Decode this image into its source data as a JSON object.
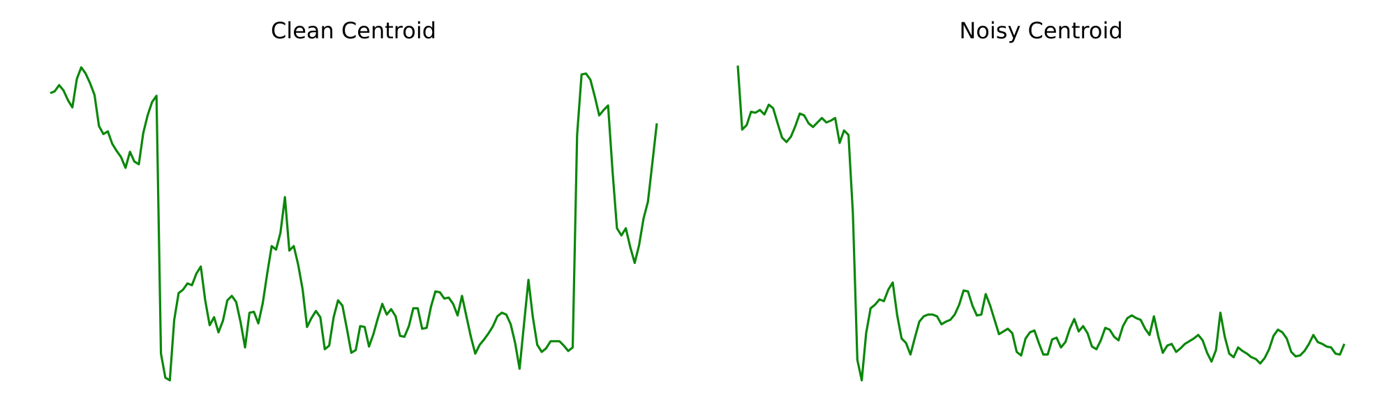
{
  "chart_data": [
    {
      "type": "line",
      "title": "Clean Centroid",
      "color": "#0a870a",
      "ylim": [
        0,
        380
      ],
      "values": [
        345,
        347,
        354,
        348,
        337,
        329,
        361,
        374,
        367,
        356,
        343,
        308,
        299,
        302,
        288,
        280,
        273,
        261,
        279,
        268,
        265,
        300,
        320,
        335,
        342,
        52,
        25,
        22,
        90,
        120,
        124,
        131,
        129,
        142,
        150,
        112,
        84,
        93,
        76,
        89,
        112,
        117,
        110,
        87,
        59,
        98,
        99,
        86,
        109,
        142,
        173,
        169,
        188,
        228,
        168,
        173,
        152,
        124,
        82,
        92,
        100,
        93,
        57,
        61,
        93,
        112,
        106,
        80,
        53,
        56,
        83,
        82,
        60,
        74,
        92,
        108,
        96,
        102,
        94,
        72,
        71,
        83,
        103,
        103,
        80,
        81,
        105,
        122,
        121,
        114,
        115,
        108,
        95,
        117,
        94,
        71,
        52,
        62,
        68,
        75,
        83,
        94,
        98,
        96,
        85,
        64,
        35,
        85,
        135,
        93,
        62,
        54,
        58,
        66,
        66,
        66,
        61,
        55,
        59,
        298,
        366,
        367,
        360,
        341,
        320,
        326,
        331,
        257,
        193,
        185,
        193,
        172,
        154,
        174,
        204,
        223,
        267,
        311
      ]
    },
    {
      "type": "line",
      "title": "Noisy Centroid",
      "color": "#0a870a",
      "ylim": [
        0,
        380
      ],
      "values": [
        376,
        304,
        309,
        324,
        323,
        326,
        321,
        332,
        328,
        311,
        295,
        290,
        296,
        308,
        322,
        320,
        311,
        307,
        312,
        317,
        312,
        314,
        317,
        289,
        303,
        298,
        210,
        45,
        22,
        75,
        103,
        107,
        113,
        111,
        124,
        132,
        95,
        69,
        64,
        51,
        70,
        88,
        94,
        96,
        96,
        94,
        85,
        88,
        90,
        96,
        107,
        123,
        122,
        106,
        95,
        96,
        119,
        106,
        90,
        74,
        77,
        80,
        75,
        54,
        50,
        69,
        76,
        78,
        64,
        51,
        51,
        68,
        70,
        59,
        65,
        80,
        91,
        77,
        83,
        75,
        60,
        57,
        67,
        81,
        79,
        71,
        67,
        83,
        92,
        95,
        92,
        90,
        80,
        73,
        94,
        71,
        53,
        61,
        63,
        54,
        58,
        63,
        66,
        69,
        73,
        67,
        53,
        43,
        56,
        98,
        71,
        52,
        48,
        59,
        55,
        52,
        48,
        46,
        41,
        47,
        57,
        72,
        79,
        76,
        69,
        54,
        49,
        50,
        55,
        63,
        73,
        65,
        63,
        60,
        59,
        52,
        51,
        63
      ]
    }
  ]
}
